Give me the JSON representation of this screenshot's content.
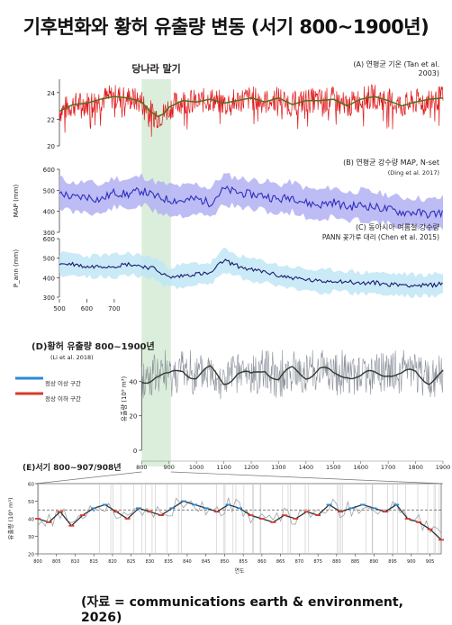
{
  "page": {
    "title": "기후변화와 황허 유출량 변동 (서기 800~1900년)",
    "source": "(자료 = communications earth & environment, 2026)",
    "highlight_label": "당나라 말기"
  },
  "chart_data": [
    {
      "id": "A",
      "type": "line",
      "panel_label": "(A) 연평균 기온 (Tan et al. 2003)",
      "ylabel": "",
      "ylim": [
        20,
        25
      ],
      "yticks": [
        20,
        22,
        24
      ],
      "xlim": [
        500,
        1900
      ],
      "highlight_x": [
        800,
        907
      ],
      "colors": {
        "raw": "#e0191b",
        "smooth": "#4f6f1a"
      },
      "series": [
        {
          "x": [
            500,
            550,
            600,
            650,
            700,
            750,
            800,
            830,
            860,
            880,
            900,
            950,
            1000,
            1050,
            1100,
            1150,
            1200,
            1250,
            1300,
            1350,
            1400,
            1450,
            1500,
            1550,
            1600,
            1650,
            1700,
            1750,
            1800,
            1850,
            1900
          ],
          "values": [
            22.6,
            23.1,
            23.2,
            23.5,
            23.7,
            23.6,
            23.3,
            22.6,
            22.2,
            22.4,
            22.9,
            23.4,
            23.3,
            23.5,
            23.2,
            23.4,
            23.6,
            23.3,
            23.6,
            23.1,
            23.4,
            23.4,
            23.5,
            23.0,
            23.5,
            23.7,
            23.4,
            23.0,
            23.3,
            23.5,
            23.6
          ]
        }
      ]
    },
    {
      "id": "B",
      "type": "area",
      "panel_label": "(B) 연평균 강수량 MAP, N-set",
      "panel_sublabel": "(Ding et al. 2017)",
      "ylabel": "MAP (mm)",
      "ylim": [
        300,
        600
      ],
      "yticks": [
        300,
        400,
        500,
        600
      ],
      "xlim": [
        500,
        1900
      ],
      "colors": {
        "line": "#2d2fbf",
        "band": "#b3b0f2"
      },
      "series": [
        {
          "x": [
            500,
            550,
            600,
            650,
            700,
            750,
            800,
            850,
            900,
            950,
            1000,
            1050,
            1100,
            1150,
            1200,
            1250,
            1300,
            1350,
            1400,
            1450,
            1500,
            1550,
            1600,
            1650,
            1700,
            1750,
            1800,
            1850,
            1900
          ],
          "values": [
            490,
            465,
            470,
            455,
            490,
            480,
            500,
            470,
            455,
            450,
            460,
            440,
            505,
            490,
            480,
            475,
            455,
            470,
            440,
            430,
            445,
            420,
            430,
            420,
            410,
            395,
            395,
            385,
            395
          ]
        }
      ]
    },
    {
      "id": "C",
      "type": "area",
      "panel_label": "(C) 동아시아 여름철 강수량",
      "panel_sublabel": "PANN 꽃가루 대리 (Chen et al. 2015)",
      "ylabel": "P_ann (mm)",
      "ylim": [
        300,
        600
      ],
      "yticks": [
        300,
        400,
        500,
        600
      ],
      "xlim": [
        500,
        1900
      ],
      "xticks": [
        500,
        600,
        700
      ],
      "colors": {
        "line": "#1b1b6e",
        "band": "#bfe6f5"
      },
      "series": [
        {
          "x": [
            500,
            550,
            600,
            650,
            700,
            750,
            800,
            850,
            900,
            950,
            1000,
            1050,
            1100,
            1150,
            1200,
            1250,
            1300,
            1350,
            1400,
            1450,
            1500,
            1550,
            1600,
            1650,
            1700,
            1750,
            1800,
            1850,
            1900
          ],
          "values": [
            470,
            470,
            455,
            460,
            460,
            470,
            460,
            445,
            400,
            410,
            420,
            420,
            490,
            460,
            440,
            430,
            410,
            400,
            390,
            380,
            385,
            380,
            370,
            375,
            365,
            365,
            360,
            360,
            370
          ]
        }
      ]
    },
    {
      "id": "D",
      "type": "line",
      "panel_label": "(D)황허 유출량 800~1900년",
      "panel_sublabel": "(Li et al. 2018)",
      "ylabel": "유출량 (10⁹ m³)",
      "ylim": [
        0,
        60
      ],
      "yticks": [
        0,
        20,
        40
      ],
      "xlim": [
        800,
        1900
      ],
      "xticks": [
        800,
        900,
        1000,
        1100,
        1200,
        1300,
        1400,
        1500,
        1600,
        1700,
        1800,
        1900
      ],
      "legend": [
        "정상 이상 구간",
        "정상 이하 구간"
      ],
      "colors": {
        "raw": "#8a8f99",
        "smooth": "#2f3a2f",
        "above": "#2a8ad6",
        "below": "#d83a2a"
      },
      "series": [
        {
          "x": [
            800,
            850,
            900,
            950,
            1000,
            1050,
            1100,
            1150,
            1200,
            1250,
            1300,
            1350,
            1400,
            1450,
            1500,
            1550,
            1600,
            1650,
            1700,
            1750,
            1800,
            1850,
            1900
          ],
          "values": [
            40,
            44,
            42,
            47,
            43,
            46,
            40,
            45,
            42,
            48,
            41,
            46,
            44,
            47,
            43,
            45,
            42,
            44,
            46,
            43,
            45,
            41,
            44
          ]
        }
      ]
    },
    {
      "id": "E",
      "type": "line",
      "panel_label": "(E)서기 800~907/908년",
      "ylabel": "유출량 (10⁹ m³)",
      "xlabel": "연도",
      "ylim": [
        20,
        60
      ],
      "yticks": [
        20,
        30,
        40,
        50,
        60
      ],
      "xlim": [
        800,
        908
      ],
      "xticks": [
        800,
        805,
        810,
        815,
        820,
        825,
        830,
        835,
        840,
        845,
        850,
        855,
        860,
        865,
        870,
        875,
        880,
        885,
        890,
        895,
        900,
        905
      ],
      "reference": 45,
      "colors": {
        "raw": "#9ea3ab",
        "smooth": "#333333",
        "above": "#2a8ad6",
        "below": "#d83a2a"
      },
      "series": [
        {
          "x": [
            800,
            803,
            806,
            809,
            812,
            815,
            818,
            821,
            824,
            827,
            830,
            833,
            836,
            839,
            842,
            845,
            848,
            851,
            854,
            857,
            860,
            863,
            866,
            869,
            872,
            875,
            878,
            881,
            884,
            887,
            890,
            893,
            896,
            899,
            902,
            905,
            908
          ],
          "values": [
            40,
            38,
            44,
            36,
            42,
            46,
            48,
            44,
            40,
            46,
            44,
            42,
            46,
            50,
            48,
            46,
            44,
            48,
            46,
            42,
            40,
            38,
            42,
            40,
            44,
            42,
            48,
            44,
            46,
            48,
            46,
            44,
            48,
            40,
            38,
            34,
            28
          ]
        }
      ]
    }
  ]
}
